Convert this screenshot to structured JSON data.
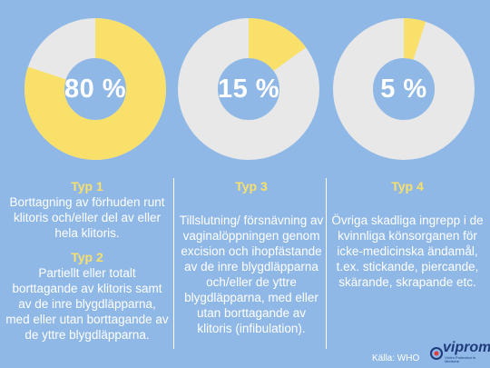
{
  "chart_data": {
    "type": "pie",
    "slices": [
      {
        "value": 80,
        "label": "80 %"
      },
      {
        "value": 15,
        "label": "15 %"
      },
      {
        "value": 5,
        "label": "5 %"
      }
    ],
    "colors": {
      "fill": "#f9e06a",
      "remainder": "#e8e8e8",
      "background": "#8fb8e6"
    }
  },
  "columns": [
    {
      "blocks": [
        {
          "title": "Typ 1",
          "text": "Borttagning av förhuden runt klitoris och/eller del av eller hela klitoris."
        },
        {
          "title": "Typ 2",
          "text": "Partiellt eller totalt borttagande av klitoris samt av de inre blygdläpparna, med eller utan borttagande av de yttre blygdläpparna."
        }
      ]
    },
    {
      "blocks": [
        {
          "title": "Typ 3",
          "text": "Tillslutning/ försnävning av vaginalöppningen genom excision och ihopfästande av de inre blygdläpparna och/eller de yttre blygdläpparna, med eller utan borttagande av klitoris (infibulation)."
        }
      ]
    },
    {
      "blocks": [
        {
          "title": "Typ 4",
          "text": "Övriga skadliga ingrepp i de kvinnliga könsorganen för icke-medicinska ändamål, t.ex. stickande, piercande, skärande, skrapande etc."
        }
      ]
    }
  ],
  "source": "Källa: WHO",
  "logo": {
    "name": "viprom",
    "tagline": "Victim Protection in Medicine"
  }
}
